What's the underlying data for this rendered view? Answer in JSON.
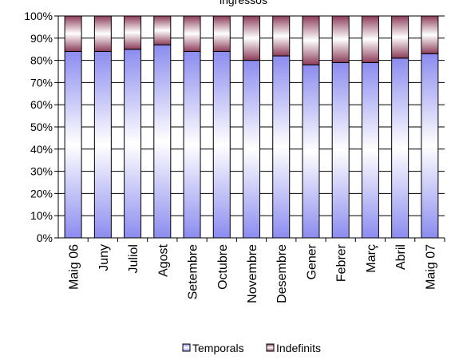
{
  "chart_data": {
    "type": "bar",
    "stacked": true,
    "percent": true,
    "title": "ingressos",
    "categories": [
      "Maig 06",
      "Juny",
      "Juliol",
      "Agost",
      "Setembre",
      "Octubre",
      "Novembre",
      "Desembre",
      "Gener",
      "Febrer",
      "Març",
      "Abril",
      "Maig 07"
    ],
    "series": [
      {
        "name": "Temporals",
        "values": [
          84,
          84,
          85,
          87,
          84,
          84,
          80,
          82,
          78,
          79,
          79,
          81,
          83
        ],
        "color": "#8c8cf0"
      },
      {
        "name": "Indefinits",
        "values": [
          16,
          16,
          15,
          13,
          16,
          16,
          20,
          18,
          22,
          21,
          21,
          19,
          17
        ],
        "color": "#8c3c5a"
      }
    ],
    "ylim": [
      0,
      100
    ],
    "yticks": [
      "0%",
      "10%",
      "20%",
      "30%",
      "40%",
      "50%",
      "60%",
      "70%",
      "80%",
      "90%",
      "100%"
    ],
    "grid": true,
    "legend_position": "bottom"
  }
}
